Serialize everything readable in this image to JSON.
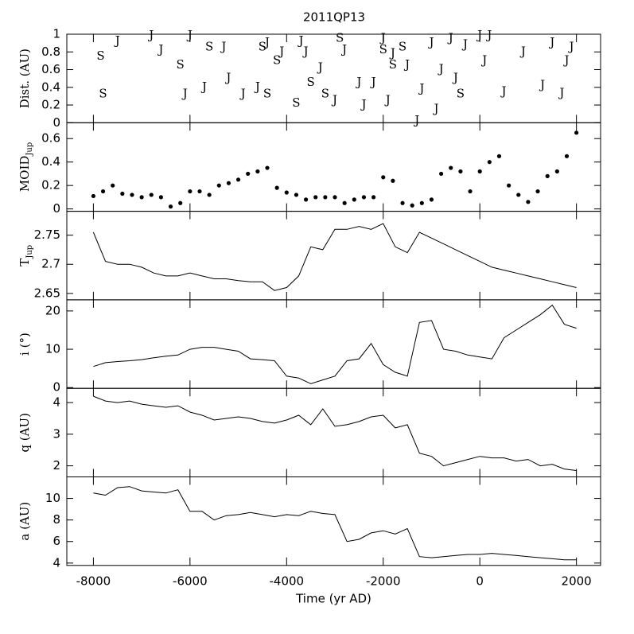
{
  "chart_data": [
    {
      "type": "scatter",
      "marker": "letter",
      "title": "2011QP13",
      "ylabel": "Dist. (AU)",
      "xlim": [
        -8550,
        2500
      ],
      "ylim": [
        0,
        1
      ],
      "yticks": [
        0,
        0.2,
        0.4,
        0.6,
        0.8,
        1
      ],
      "series": [
        {
          "name": "J",
          "color": "#000000",
          "x": [
            -7500,
            -6800,
            -6600,
            -6000,
            -6100,
            -5700,
            -5300,
            -5200,
            -4900,
            -4600,
            -4400,
            -4100,
            -3700,
            -3600,
            -3300,
            -3000,
            -2800,
            -2500,
            -2400,
            -2200,
            -2000,
            -1900,
            -1800,
            -1500,
            -1300,
            -1200,
            -1000,
            -900,
            -800,
            -600,
            -500,
            -300,
            0,
            100,
            200,
            500,
            900,
            1300,
            1500,
            1700,
            1800,
            1900
          ],
          "values": [
            0.92,
            0.98,
            0.82,
            0.98,
            0.32,
            0.4,
            0.85,
            0.5,
            0.32,
            0.4,
            0.9,
            0.8,
            0.92,
            0.8,
            0.62,
            0.25,
            0.82,
            0.45,
            0.2,
            0.45,
            0.95,
            0.25,
            0.78,
            0.65,
            0.02,
            0.38,
            0.9,
            0.15,
            0.6,
            0.95,
            0.5,
            0.88,
            0.98,
            0.7,
            0.98,
            0.35,
            0.8,
            0.42,
            0.9,
            0.33,
            0.7,
            0.85
          ]
        },
        {
          "name": "S",
          "color": "#000000",
          "x": [
            -7850,
            -7800,
            -6200,
            -5600,
            -4500,
            -4400,
            -4200,
            -3800,
            -3500,
            -3200,
            -2900,
            -2000,
            -1800,
            -1600,
            -400
          ],
          "values": [
            0.75,
            0.32,
            0.65,
            0.85,
            0.85,
            0.32,
            0.7,
            0.22,
            0.45,
            0.32,
            0.95,
            0.82,
            0.65,
            0.85,
            0.32
          ]
        }
      ]
    },
    {
      "type": "scatter",
      "marker": "dot",
      "ylabel": "MOID",
      "ylabel_sub": "Jup",
      "xlim": [
        -8550,
        2500
      ],
      "ylim": [
        -0.02,
        0.735
      ],
      "yticks": [
        0,
        0.2,
        0.4,
        0.6
      ],
      "series": [
        {
          "color": "#000000",
          "x": [
            -8000,
            -7800,
            -7600,
            -7400,
            -7200,
            -7000,
            -6800,
            -6600,
            -6400,
            -6200,
            -6000,
            -5800,
            -5600,
            -5400,
            -5200,
            -5000,
            -4800,
            -4600,
            -4400,
            -4200,
            -4000,
            -3800,
            -3600,
            -3400,
            -3200,
            -3000,
            -2800,
            -2600,
            -2400,
            -2200,
            -2000,
            -1800,
            -1600,
            -1400,
            -1200,
            -1000,
            -800,
            -600,
            -400,
            -200,
            0,
            200,
            400,
            600,
            800,
            1000,
            1200,
            1400,
            1600,
            1800,
            2000
          ],
          "values": [
            0.11,
            0.15,
            0.2,
            0.13,
            0.12,
            0.1,
            0.12,
            0.1,
            0.02,
            0.05,
            0.15,
            0.15,
            0.12,
            0.2,
            0.22,
            0.25,
            0.3,
            0.32,
            0.35,
            0.18,
            0.14,
            0.12,
            0.08,
            0.1,
            0.1,
            0.1,
            0.05,
            0.08,
            0.1,
            0.1,
            0.27,
            0.24,
            0.05,
            0.03,
            0.05,
            0.08,
            0.3,
            0.35,
            0.32,
            0.15,
            0.32,
            0.4,
            0.45,
            0.2,
            0.12,
            0.06,
            0.15,
            0.28,
            0.32,
            0.45,
            0.65
          ]
        }
      ]
    },
    {
      "type": "line",
      "ylabel": "T",
      "ylabel_sub": "Jup",
      "xlim": [
        -8550,
        2500
      ],
      "ylim": [
        2.639,
        2.791
      ],
      "yticks": [
        2.65,
        2.7,
        2.75
      ],
      "x": [
        -8000,
        -7750,
        -7500,
        -7250,
        -7000,
        -6750,
        -6500,
        -6250,
        -6000,
        -5750,
        -5500,
        -5250,
        -5000,
        -4750,
        -4500,
        -4250,
        -4000,
        -3750,
        -3500,
        -3250,
        -3000,
        -2750,
        -2500,
        -2250,
        -2000,
        -1750,
        -1500,
        -1250,
        -1000,
        -750,
        -500,
        -250,
        0,
        250,
        500,
        750,
        1000,
        1250,
        1500,
        1750,
        2000
      ],
      "values": [
        2.755,
        2.705,
        2.7,
        2.7,
        2.695,
        2.685,
        2.68,
        2.68,
        2.685,
        2.68,
        2.675,
        2.675,
        2.672,
        2.67,
        2.67,
        2.655,
        2.66,
        2.68,
        2.73,
        2.725,
        2.76,
        2.76,
        2.765,
        2.76,
        2.77,
        2.73,
        2.72,
        2.755,
        2.745,
        2.735,
        2.725,
        2.715,
        2.705,
        2.695,
        2.69,
        2.685,
        2.68,
        2.675,
        2.67,
        2.665,
        2.66
      ],
      "color": "#000000"
    },
    {
      "type": "line",
      "ylabel": "i (°)",
      "xlim": [
        -8550,
        2500
      ],
      "ylim": [
        -0.2,
        22.9
      ],
      "yticks": [
        0,
        10,
        20
      ],
      "x": [
        -8000,
        -7750,
        -7500,
        -7250,
        -7000,
        -6750,
        -6500,
        -6250,
        -6000,
        -5750,
        -5500,
        -5250,
        -5000,
        -4750,
        -4500,
        -4250,
        -4000,
        -3750,
        -3500,
        -3250,
        -3000,
        -2750,
        -2500,
        -2250,
        -2000,
        -1750,
        -1500,
        -1250,
        -1000,
        -750,
        -500,
        -250,
        0,
        250,
        500,
        750,
        1000,
        1250,
        1500,
        1750,
        2000
      ],
      "values": [
        5.5,
        6.5,
        6.8,
        7,
        7.3,
        7.8,
        8.2,
        8.5,
        10,
        10.5,
        10.5,
        10,
        9.5,
        7.5,
        7.3,
        7,
        3,
        2.5,
        1,
        2,
        3,
        7,
        7.5,
        11.5,
        6,
        4,
        3,
        17,
        17.5,
        10,
        9.5,
        8.5,
        8,
        7.5,
        13,
        15,
        17,
        19,
        21.5,
        16.5,
        15.5
      ],
      "color": "#000000"
    },
    {
      "type": "line",
      "ylabel": "q (AU)",
      "xlim": [
        -8550,
        2500
      ],
      "ylim": [
        1.65,
        4.45
      ],
      "yticks": [
        2,
        3,
        4
      ],
      "x": [
        -8000,
        -7750,
        -7500,
        -7250,
        -7000,
        -6750,
        -6500,
        -6250,
        -6000,
        -5750,
        -5500,
        -5250,
        -5000,
        -4750,
        -4500,
        -4250,
        -4000,
        -3750,
        -3500,
        -3250,
        -3000,
        -2750,
        -2500,
        -2250,
        -2000,
        -1750,
        -1500,
        -1250,
        -1000,
        -750,
        -500,
        -250,
        0,
        250,
        500,
        750,
        1000,
        1250,
        1500,
        1750,
        2000
      ],
      "values": [
        4.2,
        4.05,
        4,
        4.05,
        3.95,
        3.9,
        3.85,
        3.9,
        3.7,
        3.6,
        3.45,
        3.5,
        3.55,
        3.5,
        3.4,
        3.35,
        3.45,
        3.6,
        3.3,
        3.8,
        3.25,
        3.3,
        3.4,
        3.55,
        3.6,
        3.2,
        3.3,
        2.4,
        2.3,
        2,
        2.1,
        2.2,
        2.3,
        2.25,
        2.25,
        2.15,
        2.2,
        2,
        2.05,
        1.9,
        1.85
      ],
      "color": "#000000"
    },
    {
      "type": "line",
      "ylabel": "a (AU)",
      "xlabel": "Time (yr AD)",
      "xlim": [
        -8550,
        2500
      ],
      "xticks": [
        -8000,
        -6000,
        -4000,
        -2000,
        0,
        2000
      ],
      "ylim": [
        3.78,
        12
      ],
      "yticks": [
        4,
        6,
        8,
        10
      ],
      "x": [
        -8000,
        -7750,
        -7500,
        -7250,
        -7000,
        -6750,
        -6500,
        -6250,
        -6000,
        -5750,
        -5500,
        -5250,
        -5000,
        -4750,
        -4500,
        -4250,
        -4000,
        -3750,
        -3500,
        -3250,
        -3000,
        -2750,
        -2500,
        -2250,
        -2000,
        -1750,
        -1500,
        -1250,
        -1000,
        -750,
        -500,
        -250,
        0,
        250,
        500,
        750,
        1000,
        1250,
        1500,
        1750,
        2000
      ],
      "values": [
        10.5,
        10.3,
        11,
        11.1,
        10.7,
        10.6,
        10.5,
        10.8,
        8.8,
        8.8,
        8,
        8.4,
        8.5,
        8.7,
        8.5,
        8.3,
        8.5,
        8.4,
        8.8,
        8.6,
        8.5,
        6,
        6.2,
        6.8,
        7,
        6.7,
        7.2,
        4.6,
        4.5,
        4.6,
        4.7,
        4.8,
        4.8,
        4.9,
        4.8,
        4.7,
        4.6,
        4.5,
        4.4,
        4.3,
        4.3
      ],
      "color": "#000000"
    }
  ]
}
